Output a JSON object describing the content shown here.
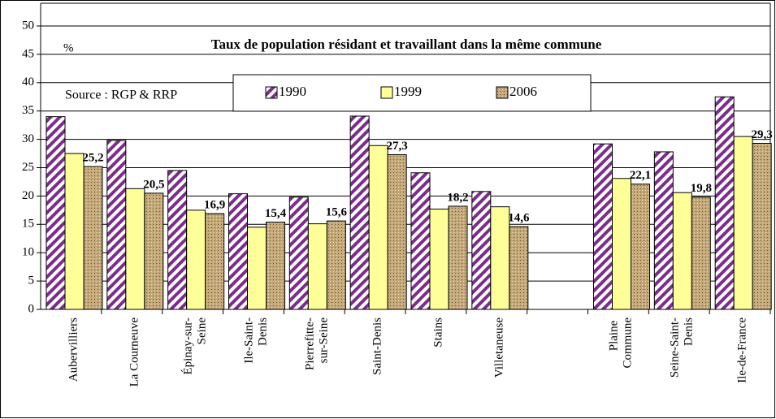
{
  "chart_data": {
    "type": "bar",
    "title": "Taux de population résidant et travaillant dans la même commune",
    "y_label": "%",
    "annotation": "Source : RGP & RRP",
    "categories": [
      "Aubervilliers",
      "La Courneuve",
      "Épinay-sur-Seine",
      "Ile-Saint-Denis",
      "Pierrefitte-sur-Seine",
      "Saint-Denis",
      "Stains",
      "Villetaneuse",
      null,
      "Plaine Commune",
      "Seine-Saint-Denis",
      "Ile-de-France"
    ],
    "series": [
      {
        "name": "1990",
        "color": "#7b2d8b",
        "values": [
          34,
          29.8,
          24.5,
          20.4,
          19.8,
          34.1,
          24.1,
          20.8,
          null,
          29.2,
          27.8,
          37.5
        ]
      },
      {
        "name": "1999",
        "color": "#ffff99",
        "values": [
          27.5,
          21.3,
          17.5,
          14.5,
          15.1,
          28.9,
          17.7,
          18.1,
          null,
          23.1,
          20.6,
          30.5
        ]
      },
      {
        "name": "2006",
        "color": "#c4a878",
        "values": [
          25.2,
          20.5,
          16.9,
          15.4,
          15.6,
          27.3,
          18.2,
          14.6,
          null,
          22.1,
          19.8,
          29.3
        ],
        "value_labels": [
          "25,2",
          "20,5",
          "16,9",
          "15,4",
          "15,6",
          "27,3",
          "18,2",
          "14,6",
          null,
          "22,1",
          "19,8",
          "29,3"
        ]
      }
    ],
    "ylim": [
      0,
      50
    ],
    "yticks": [
      0,
      5,
      10,
      15,
      20,
      25,
      30,
      35,
      40,
      45,
      50
    ],
    "grid": true
  }
}
